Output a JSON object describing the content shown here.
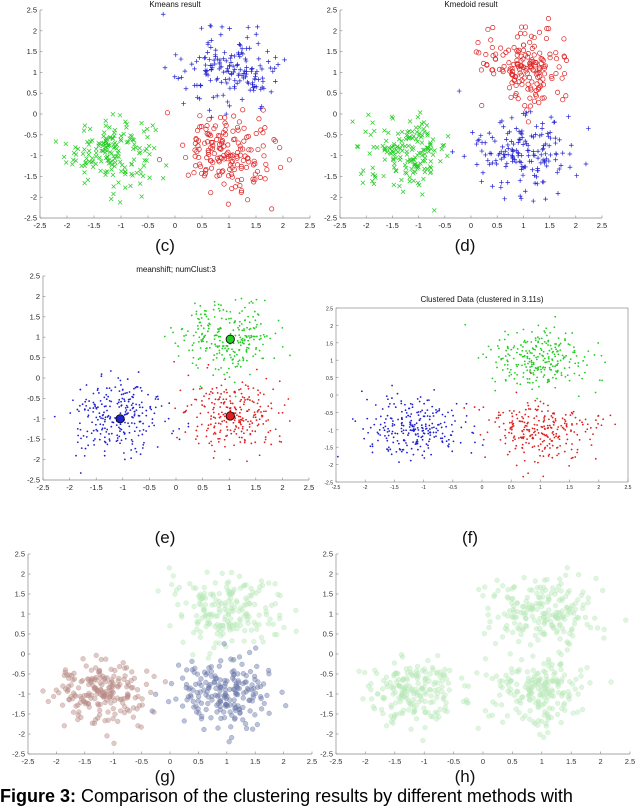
{
  "caption": {
    "prefix": "Figure 3:",
    "text": "Comparison of the clustering results by different methods with"
  },
  "colors": {
    "green": "#22cc22",
    "red": "#e02020",
    "blue": "#2020d0",
    "faded_green": "#b8e8b8",
    "faded_brown": "#b88a84",
    "faded_navy": "#6a78a8"
  },
  "chart_data": [
    {
      "id": "c",
      "label": "(c)",
      "type": "scatter",
      "title": "Kmeans result",
      "xlim": [
        -2.5,
        2.5
      ],
      "ylim": [
        -2.5,
        2.5
      ],
      "xticks": [
        "-2.5",
        "-2",
        "-1.5",
        "-1",
        "-0.5",
        "0",
        "0.5",
        "1",
        "1.5",
        "2",
        "2.5"
      ],
      "yticks": [
        "2.5",
        "2",
        "1.5",
        "1",
        "0.5",
        "0",
        "-0.5",
        "-1",
        "-1.5",
        "-2",
        "-2.5"
      ],
      "series": [
        {
          "marker": "x",
          "color": "#22cc22",
          "center": [
            -1.2,
            -0.9
          ],
          "spread": 0.4,
          "count": 170
        },
        {
          "marker": "+",
          "color": "#2020d0",
          "center": [
            1.0,
            1.1
          ],
          "spread": 0.45,
          "count": 170
        },
        {
          "marker": "o",
          "color": "#e02020",
          "center": [
            1.0,
            -0.95
          ],
          "spread": 0.45,
          "count": 170
        }
      ]
    },
    {
      "id": "d",
      "label": "(d)",
      "type": "scatter",
      "title": "Kmedoid result",
      "xlim": [
        -2.5,
        2.5
      ],
      "ylim": [
        -2.5,
        2.5
      ],
      "xticks": [
        "-2.5",
        "-2",
        "-1.5",
        "-1",
        "-0.5",
        "0",
        "0.5",
        "1",
        "1.5",
        "2",
        "2.5"
      ],
      "yticks": [
        "2.5",
        "2",
        "1.5",
        "1",
        "0.5",
        "0",
        "-0.5",
        "-1",
        "-1.5",
        "-2",
        "-2.5"
      ],
      "series": [
        {
          "marker": "x",
          "color": "#22cc22",
          "center": [
            -1.2,
            -0.9
          ],
          "spread": 0.4,
          "count": 170
        },
        {
          "marker": "o",
          "color": "#e02020",
          "center": [
            1.0,
            1.1
          ],
          "spread": 0.45,
          "count": 170
        },
        {
          "marker": "+",
          "color": "#2020d0",
          "center": [
            1.0,
            -0.95
          ],
          "spread": 0.45,
          "count": 170
        }
      ]
    },
    {
      "id": "e",
      "label": "(e)",
      "type": "scatter",
      "title": "meanshift; numClust:3",
      "xlim": [
        -2.5,
        2.5
      ],
      "ylim": [
        -2.5,
        2.5
      ],
      "xticks": [
        "-2.5",
        "-2",
        "-1.5",
        "-1",
        "-0.5",
        "0",
        "0.5",
        "1",
        "1.5",
        "2",
        "2.5"
      ],
      "yticks": [
        "2.5",
        "2",
        "1.5",
        "1",
        "0.5",
        "0",
        "-0.5",
        "-1",
        "-1.5",
        "-2",
        "-2.5"
      ],
      "series": [
        {
          "marker": "dot",
          "color": "#22cc22",
          "center": [
            1.0,
            1.0
          ],
          "spread": 0.45,
          "count": 260
        },
        {
          "marker": "dot",
          "color": "#2020d0",
          "center": [
            -1.1,
            -0.95
          ],
          "spread": 0.45,
          "count": 260
        },
        {
          "marker": "dot",
          "color": "#e02020",
          "center": [
            1.05,
            -0.95
          ],
          "spread": 0.45,
          "count": 260
        }
      ],
      "centroids": [
        {
          "x": 1.02,
          "y": 0.95,
          "color": "#22cc22"
        },
        {
          "x": -1.05,
          "y": -1.0,
          "color": "#2020d0"
        },
        {
          "x": 1.02,
          "y": -0.93,
          "color": "#e02020"
        }
      ]
    },
    {
      "id": "f",
      "label": "(f)",
      "type": "scatter",
      "title": "Clustered Data (clustered in 3.11s)",
      "xlim": [
        -2.5,
        2.5
      ],
      "ylim": [
        -2.5,
        2.5
      ],
      "xticks": [
        "-2.5",
        "-2",
        "-1.5",
        "-1",
        "-0.5",
        "0",
        "0.5",
        "1",
        "1.5",
        "2",
        "2.5"
      ],
      "yticks": [
        "2.5",
        "2",
        "1.5",
        "1",
        "0.5",
        "0",
        "-0.5",
        "-1",
        "-1.5",
        "-2",
        "-2.5"
      ],
      "series": [
        {
          "marker": "dot",
          "color": "#22cc22",
          "center": [
            1.0,
            1.05
          ],
          "spread": 0.45,
          "count": 260
        },
        {
          "marker": "dot",
          "color": "#2020d0",
          "center": [
            -1.15,
            -0.95
          ],
          "spread": 0.45,
          "count": 260
        },
        {
          "marker": "dot",
          "color": "#e02020",
          "center": [
            1.0,
            -1.0
          ],
          "spread": 0.45,
          "count": 260
        }
      ]
    },
    {
      "id": "g",
      "label": "(g)",
      "type": "scatter",
      "title": "",
      "xlim": [
        -2.5,
        2.5
      ],
      "ylim": [
        -2.5,
        2.5
      ],
      "xticks": [
        "-2.5",
        "-2",
        "-1.5",
        "-1",
        "-0.5",
        "0",
        "0.5",
        "1",
        "1.5",
        "2",
        "2.5"
      ],
      "yticks": [
        "2.5",
        "2",
        "1.5",
        "1",
        "0.5",
        "0",
        "-0.5",
        "-1",
        "-1.5",
        "-2",
        "-2.5"
      ],
      "series": [
        {
          "marker": "soft",
          "color": "#b8e8b8",
          "center": [
            1.0,
            1.1
          ],
          "spread": 0.45,
          "count": 200
        },
        {
          "marker": "soft",
          "color": "#b88a84",
          "center": [
            -1.2,
            -0.95
          ],
          "spread": 0.42,
          "count": 200
        },
        {
          "marker": "soft",
          "color": "#6a78a8",
          "center": [
            1.0,
            -0.95
          ],
          "spread": 0.42,
          "count": 200
        }
      ]
    },
    {
      "id": "h",
      "label": "(h)",
      "type": "scatter",
      "title": "",
      "xlim": [
        -2.5,
        2.5
      ],
      "ylim": [
        -2.5,
        2.5
      ],
      "xticks": [
        "-2.5",
        "-2",
        "-1.5",
        "-1",
        "-0.5",
        "0",
        "0.5",
        "1",
        "1.5",
        "2",
        "2.5"
      ],
      "yticks": [
        "2.5",
        "2",
        "1.5",
        "1",
        "0.5",
        "0",
        "-0.5",
        "-1",
        "-1.5",
        "-2",
        "-2.5"
      ],
      "series": [
        {
          "marker": "soft",
          "color": "#b8e8b8",
          "center": [
            1.0,
            1.1
          ],
          "spread": 0.45,
          "count": 200
        },
        {
          "marker": "soft",
          "color": "#b8e8b8",
          "center": [
            -1.2,
            -0.95
          ],
          "spread": 0.42,
          "count": 200
        },
        {
          "marker": "soft",
          "color": "#b8e8b8",
          "center": [
            1.0,
            -0.95
          ],
          "spread": 0.42,
          "count": 200
        }
      ]
    }
  ]
}
